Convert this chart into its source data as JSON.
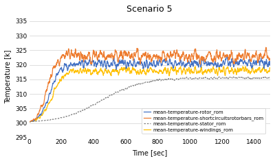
{
  "title": "Scenario 5",
  "xlabel": "Time [sec]",
  "ylabel": "Temperature [k]",
  "xlim": [
    0,
    1500
  ],
  "ylim": [
    295,
    337
  ],
  "yticks": [
    295,
    300,
    305,
    310,
    315,
    320,
    325,
    330,
    335
  ],
  "xticks": [
    0,
    200,
    400,
    600,
    800,
    1000,
    1200,
    1400
  ],
  "colors": {
    "rotor": "#4472C4",
    "shortcircuit": "#ED7D31",
    "stator": "#808080",
    "windings": "#FFC000"
  },
  "legend": [
    "mean-temperature-rotor_rom",
    "mean-temperature-shortcircuitsrotorbars_rom",
    "mean-temperature-stator_rom",
    "mean-temperature-windings_rom"
  ],
  "background": "#FFFFFF",
  "grid_color": "#D0D0D0"
}
